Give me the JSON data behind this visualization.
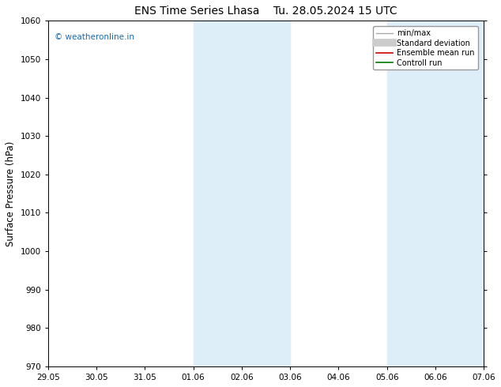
{
  "title": "ENS Time Series Lhasa",
  "title2": "Tu. 28.05.2024 15 UTC",
  "ylabel": "Surface Pressure (hPa)",
  "watermark": "© weatheronline.in",
  "watermark_color": "#1a6aab",
  "ylim": [
    970,
    1060
  ],
  "yticks": [
    970,
    980,
    990,
    1000,
    1010,
    1020,
    1030,
    1040,
    1050,
    1060
  ],
  "x_labels": [
    "29.05",
    "30.05",
    "31.05",
    "01.06",
    "02.06",
    "03.06",
    "04.06",
    "05.06",
    "06.06",
    "07.06"
  ],
  "shade_regions": [
    {
      "xstart": 3,
      "xend": 4
    },
    {
      "xstart": 4,
      "xend": 5
    },
    {
      "xstart": 7,
      "xend": 8
    },
    {
      "xstart": 8,
      "xend": 9
    }
  ],
  "shade_color": "#ddeef8",
  "background_color": "#ffffff",
  "legend_items": [
    {
      "label": "min/max",
      "color": "#aaaaaa",
      "lw": 1.0,
      "style": "line"
    },
    {
      "label": "Standard deviation",
      "color": "#cccccc",
      "lw": 7,
      "style": "band"
    },
    {
      "label": "Ensemble mean run",
      "color": "#cc0000",
      "lw": 1.2,
      "style": "line"
    },
    {
      "label": "Controll run",
      "color": "#007700",
      "lw": 1.2,
      "style": "line"
    }
  ],
  "figsize": [
    6.34,
    4.9
  ],
  "dpi": 100
}
